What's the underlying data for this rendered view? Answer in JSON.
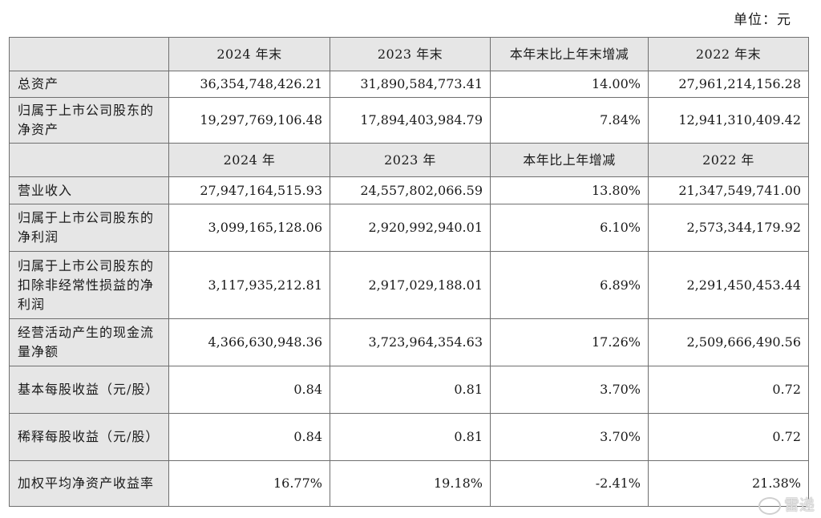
{
  "unit_label": "单位：元",
  "header1": [
    "2024 年末",
    "2023 年末",
    "本年末比上年末增减",
    "2022 年末"
  ],
  "rows1": [
    {
      "label": "总资产",
      "values": [
        "36,354,748,426.21",
        "31,890,584,773.41",
        "14.00%",
        "27,961,214,156.28"
      ]
    },
    {
      "label": "归属于上市公司股东的净资产",
      "values": [
        "19,297,769,106.48",
        "17,894,403,984.79",
        "7.84%",
        "12,941,310,409.42"
      ]
    }
  ],
  "header2": [
    "2024 年",
    "2023 年",
    "本年比上年增减",
    "2022 年"
  ],
  "rows2": [
    {
      "label": "营业收入",
      "values": [
        "27,947,164,515.93",
        "24,557,802,066.59",
        "13.80%",
        "21,347,549,741.00"
      ]
    },
    {
      "label": "归属于上市公司股东的净利润",
      "values": [
        "3,099,165,128.06",
        "2,920,992,940.01",
        "6.10%",
        "2,573,344,179.92"
      ]
    },
    {
      "label": "归属于上市公司股东的扣除非经常性损益的净利润",
      "values": [
        "3,117,935,212.81",
        "2,917,029,188.01",
        "6.89%",
        "2,291,450,453.44"
      ]
    },
    {
      "label": "经营活动产生的现金流量净额",
      "values": [
        "4,366,630,948.36",
        "3,723,964,354.63",
        "17.26%",
        "2,509,666,490.56"
      ]
    },
    {
      "label": "基本每股收益（元/股）",
      "values": [
        "0.84",
        "0.81",
        "3.70%",
        "0.72"
      ]
    },
    {
      "label": "稀释每股收益（元/股）",
      "values": [
        "0.84",
        "0.81",
        "3.70%",
        "0.72"
      ]
    },
    {
      "label": "加权平均净资产收益率",
      "values": [
        "16.77%",
        "19.18%",
        "-2.41%",
        "21.38%"
      ]
    }
  ],
  "watermark": "雷递"
}
